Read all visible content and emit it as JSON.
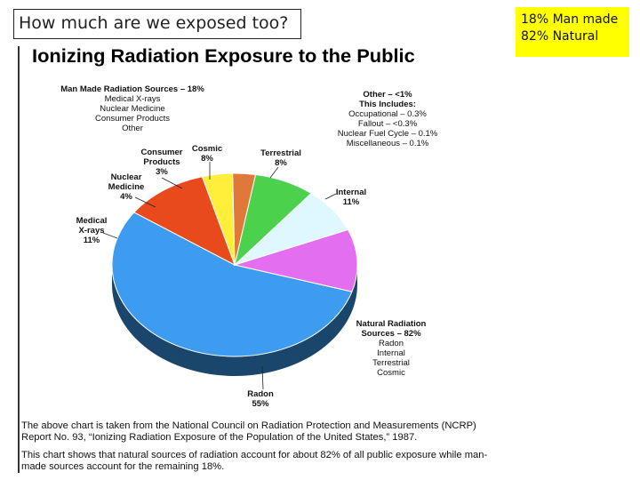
{
  "slide": {
    "title": "How much are we exposed too?",
    "note_line1": "18% Man made",
    "note_line2": "82% Natural"
  },
  "chart_data": {
    "type": "pie",
    "title": "Ionizing Radiation Exposure to the Public",
    "slices": [
      {
        "label": "Radon",
        "value": 55,
        "display": "55%",
        "color": "#3d9cf0"
      },
      {
        "label": "Internal",
        "value": 11,
        "display": "11%",
        "color": "#e36ef0"
      },
      {
        "label": "Terrestrial",
        "value": 8,
        "display": "8%",
        "color": "#dff8ff"
      },
      {
        "label": "Cosmic",
        "value": 8,
        "display": "8%",
        "color": "#4cd14c"
      },
      {
        "label": "Consumer Products",
        "value": 3,
        "display": "3%",
        "color": "#e0783a"
      },
      {
        "label": "Nuclear Medicine",
        "value": 4,
        "display": "4%",
        "color": "#ffef3a"
      },
      {
        "label": "Medical X-rays",
        "value": 11,
        "display": "11%",
        "color": "#e84a1c"
      }
    ],
    "man_made_group": {
      "title": "Man Made Radiation Sources – 18%",
      "items": [
        "Medical X-rays",
        "Nuclear Medicine",
        "Consumer Products",
        "Other"
      ]
    },
    "other_group": {
      "title": "Other – <1%",
      "subtitle": "This Includes:",
      "items": [
        "Occupational – 0.3%",
        "Fallout – <0.3%",
        "Nuclear Fuel Cycle – 0.1%",
        "Miscellaneous – 0.1%"
      ]
    },
    "natural_group": {
      "title_line1": "Natural Radiation",
      "title_line2": "Sources – 82%",
      "items": [
        "Radon",
        "Internal",
        "Terrestrial",
        "Cosmic"
      ]
    },
    "slice_labels": {
      "consumer": [
        "Consumer",
        "Products",
        "3%"
      ],
      "cosmic": [
        "Cosmic",
        "8%"
      ],
      "terrestrial": [
        "Terrestrial",
        "8%"
      ],
      "internal": [
        "Internal",
        "11%"
      ],
      "nuclear": [
        "Nuclear",
        "Medicine",
        "4%"
      ],
      "medical": [
        "Medical",
        "X-rays",
        "11%"
      ],
      "radon": [
        "Radon",
        "55%"
      ]
    },
    "caption": {
      "p1": "The above chart is taken from the National Council on Radiation Protection and Measurements (NCRP) Report No. 93, “Ionizing Radiation Exposure of the Population of the United States,” 1987.",
      "p2": "This chart shows that natural sources of radiation account for about 82% of all public exposure while man-made sources account for the remaining 18%."
    }
  }
}
